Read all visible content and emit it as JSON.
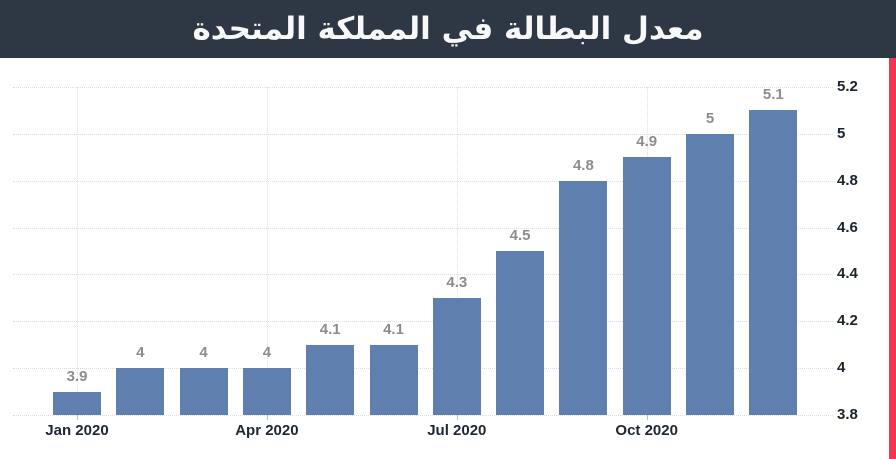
{
  "header": {
    "title": "معدل البطالة في المملكة المتحدة"
  },
  "colors": {
    "header_bg": "#2e3744",
    "header_text": "#f7f8f9",
    "accent_stripe": "#ef3550",
    "bar_fill": "#5f80af",
    "gridline": "#dedede",
    "value_label": "#8d8d8d",
    "axis_label": "#1b2430"
  },
  "chart_data": {
    "type": "bar",
    "title": "معدل البطالة في المملكة المتحدة",
    "title_translation": "United Kingdom Unemployment Rate",
    "values": [
      3.9,
      4,
      4,
      4,
      4.1,
      4.1,
      4.3,
      4.5,
      4.8,
      4.9,
      5,
      5.1
    ],
    "value_labels": [
      "3.9",
      "4",
      "4",
      "4",
      "4.1",
      "4.1",
      "4.3",
      "4.5",
      "4.8",
      "4.9",
      "5",
      "5.1"
    ],
    "bar_count": 12,
    "xticks": [
      {
        "index": 0,
        "label": "Jan 2020"
      },
      {
        "index": 3,
        "label": "Apr 2020"
      },
      {
        "index": 6,
        "label": "Jul 2020"
      },
      {
        "index": 9,
        "label": "Oct 2020"
      }
    ],
    "yticks": [
      {
        "value": 3.8,
        "label": "3.8"
      },
      {
        "value": 4.0,
        "label": "4"
      },
      {
        "value": 4.2,
        "label": "4.2"
      },
      {
        "value": 4.4,
        "label": "4.4"
      },
      {
        "value": 4.6,
        "label": "4.6"
      },
      {
        "value": 4.8,
        "label": "4.8"
      },
      {
        "value": 5.0,
        "label": "5"
      },
      {
        "value": 5.2,
        "label": "5.2"
      }
    ],
    "ylim": [
      3.8,
      5.2
    ],
    "grid": true,
    "legend_position": "none",
    "yaxis_side": "right"
  }
}
